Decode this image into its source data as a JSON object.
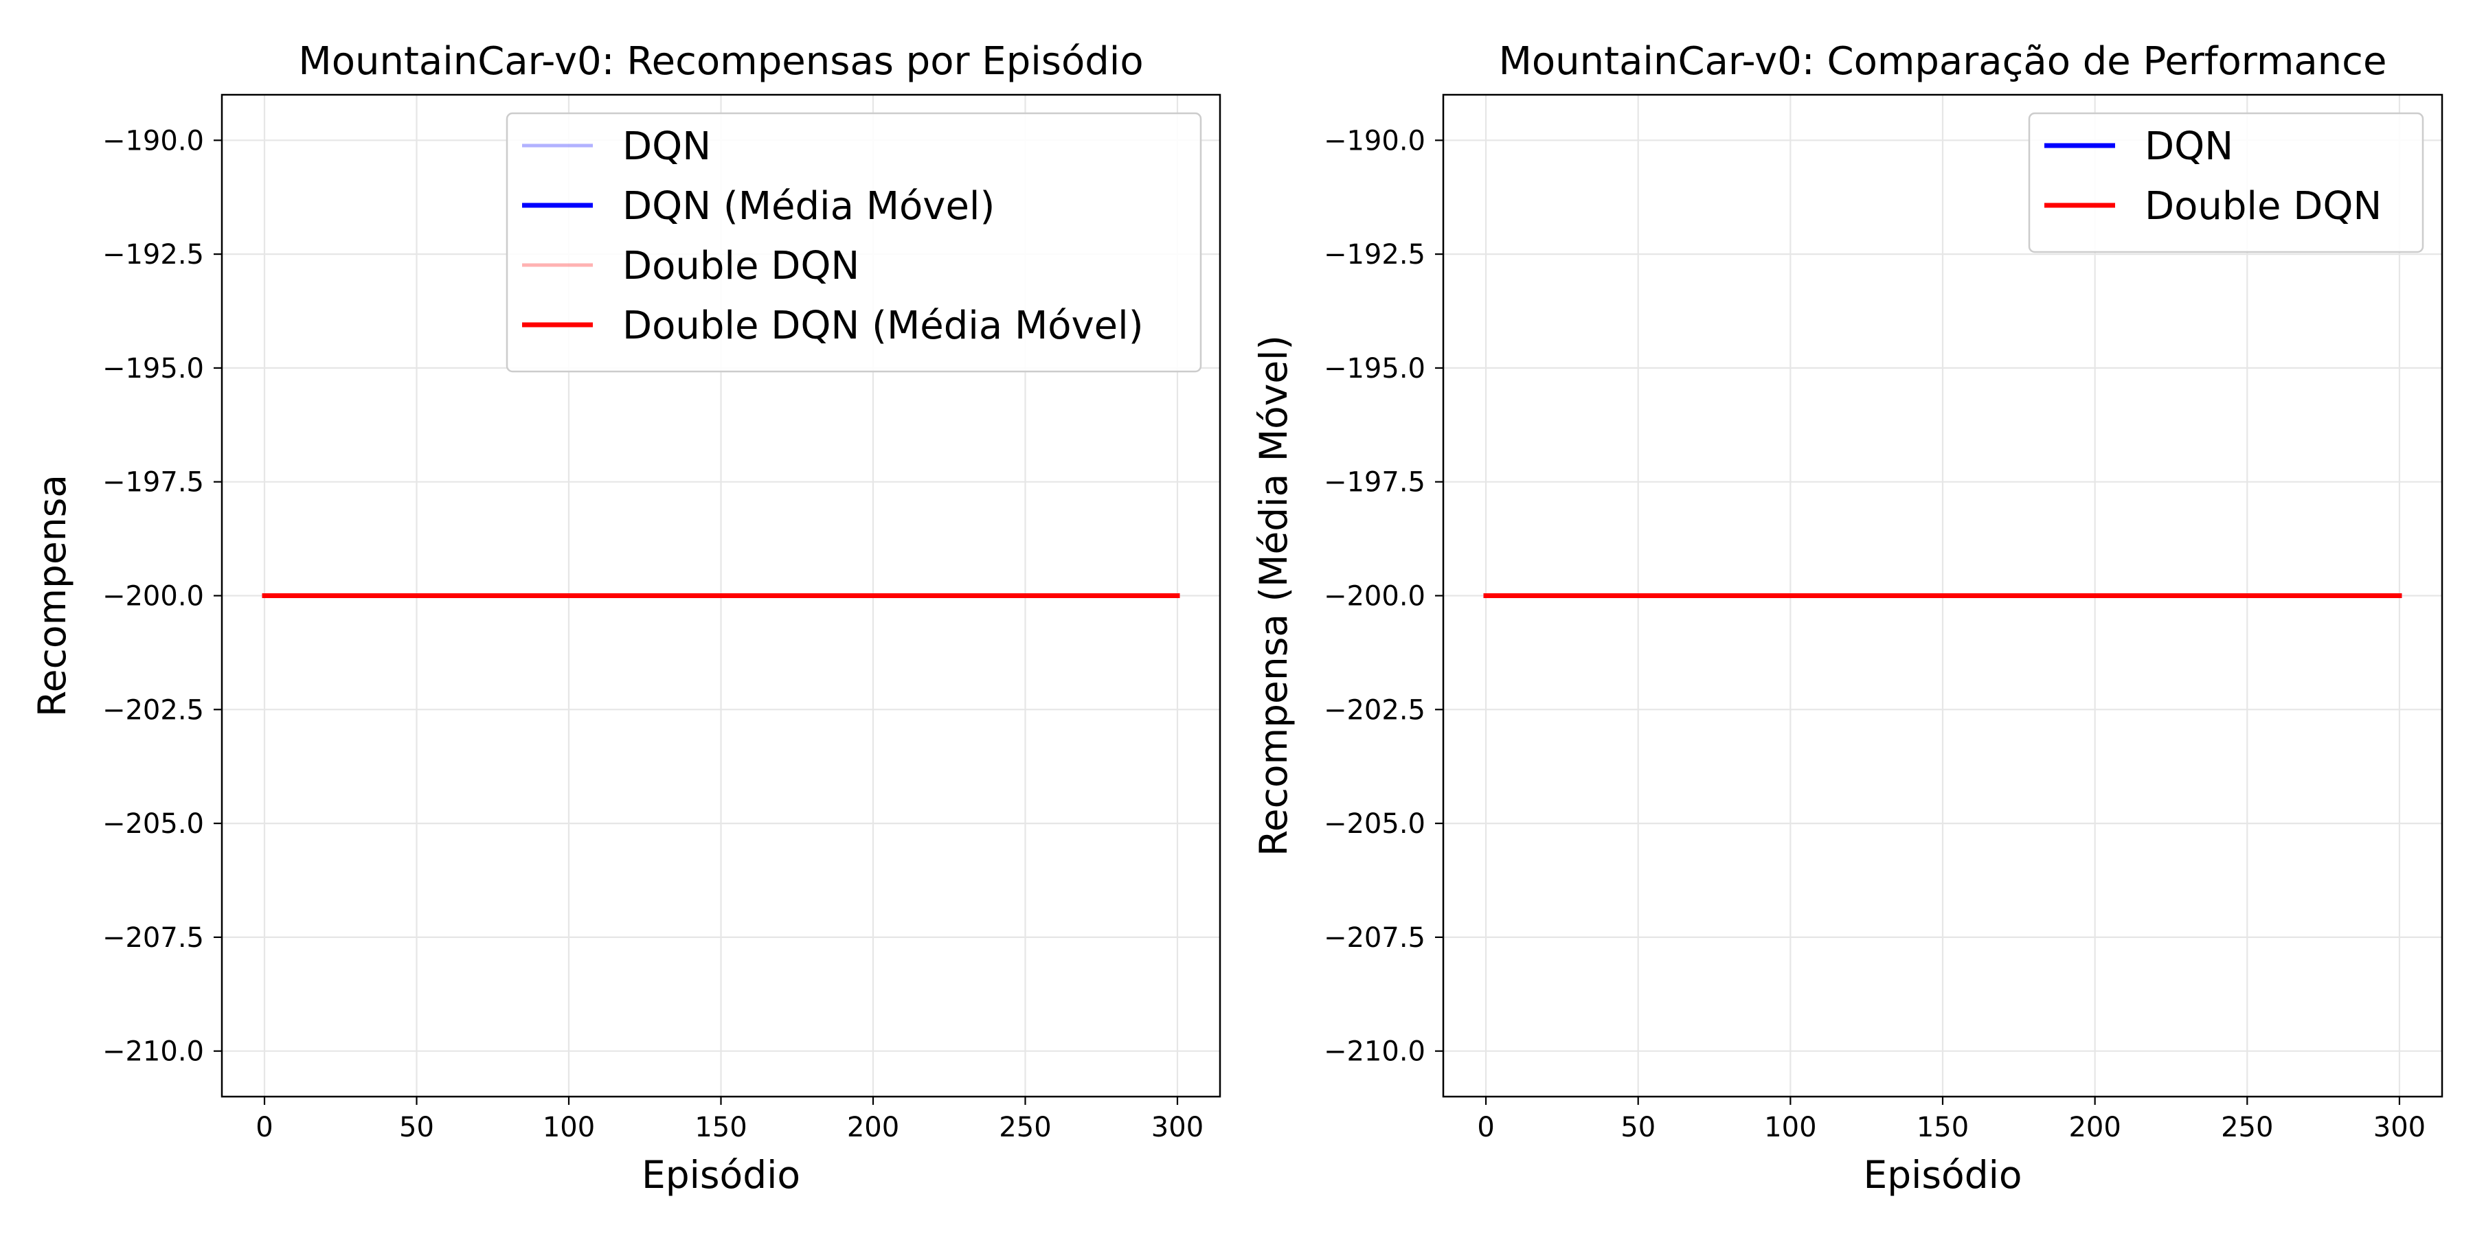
{
  "colors": {
    "dqn": "#0000ff",
    "double_dqn": "#ff0000",
    "grid": "#e6e6e6",
    "axes": "#000000",
    "legend_border": "#cccccc"
  },
  "chart_data": [
    {
      "type": "line",
      "title": "MountainCar-v0: Recompensas por Episódio",
      "xlabel": "Episódio",
      "ylabel": "Recompensa",
      "xlim": [
        -14,
        314
      ],
      "ylim": [
        -211,
        -189
      ],
      "xticks": [
        0,
        50,
        100,
        150,
        200,
        250,
        300
      ],
      "yticks": [
        -190.0,
        -192.5,
        -195.0,
        -197.5,
        -200.0,
        -202.5,
        -205.0,
        -207.5,
        -210.0
      ],
      "xtick_labels": [
        "0",
        "50",
        "100",
        "150",
        "200",
        "250",
        "300"
      ],
      "ytick_labels": [
        "−190.0",
        "−192.5",
        "−195.0",
        "−197.5",
        "−200.0",
        "−202.5",
        "−205.0",
        "−207.5",
        "−210.0"
      ],
      "grid": true,
      "legend_position": "top-right",
      "x": [
        0,
        300
      ],
      "series": [
        {
          "name": "DQN",
          "values": [
            -200,
            -200
          ],
          "color": "#0000ff",
          "alpha": 0.3,
          "width": "thin"
        },
        {
          "name": "DQN (Média Móvel)",
          "values": [
            -200,
            -200
          ],
          "color": "#0000ff",
          "alpha": 1.0,
          "width": "thick"
        },
        {
          "name": "Double DQN",
          "values": [
            -200,
            -200
          ],
          "color": "#ff0000",
          "alpha": 0.3,
          "width": "thin"
        },
        {
          "name": "Double DQN (Média Móvel)",
          "values": [
            -200,
            -200
          ],
          "color": "#ff0000",
          "alpha": 1.0,
          "width": "thick"
        }
      ]
    },
    {
      "type": "line",
      "title": "MountainCar-v0: Comparação de Performance",
      "xlabel": "Episódio",
      "ylabel": "Recompensa (Média Móvel)",
      "xlim": [
        -14,
        314
      ],
      "ylim": [
        -211,
        -189
      ],
      "xticks": [
        0,
        50,
        100,
        150,
        200,
        250,
        300
      ],
      "yticks": [
        -190.0,
        -192.5,
        -195.0,
        -197.5,
        -200.0,
        -202.5,
        -205.0,
        -207.5,
        -210.0
      ],
      "xtick_labels": [
        "0",
        "50",
        "100",
        "150",
        "200",
        "250",
        "300"
      ],
      "ytick_labels": [
        "−190.0",
        "−192.5",
        "−195.0",
        "−197.5",
        "−200.0",
        "−202.5",
        "−205.0",
        "−207.5",
        "−210.0"
      ],
      "grid": true,
      "legend_position": "top-right",
      "x": [
        0,
        300
      ],
      "series": [
        {
          "name": "DQN",
          "values": [
            -200,
            -200
          ],
          "color": "#0000ff",
          "alpha": 1.0,
          "width": "thick"
        },
        {
          "name": "Double DQN",
          "values": [
            -200,
            -200
          ],
          "color": "#ff0000",
          "alpha": 1.0,
          "width": "thick"
        }
      ]
    }
  ]
}
